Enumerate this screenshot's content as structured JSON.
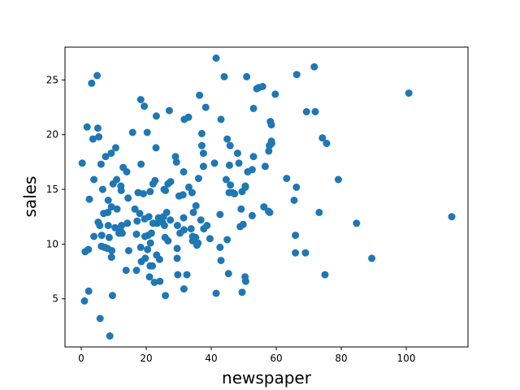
{
  "chart_data": {
    "type": "scatter",
    "title": "",
    "xlabel": "newspaper",
    "ylabel": "sales",
    "xlim": [
      -5,
      119
    ],
    "ylim": [
      0.6,
      28.0
    ],
    "xticks": [
      0,
      20,
      40,
      60,
      80,
      100
    ],
    "yticks": [
      5,
      10,
      15,
      20,
      25
    ],
    "grid": false,
    "legend": "none",
    "marker_color": "#1f77b4",
    "points": [
      [
        0.3,
        17.4
      ],
      [
        1.0,
        4.8
      ],
      [
        1.2,
        9.3
      ],
      [
        1.8,
        20.7
      ],
      [
        2.2,
        9.5
      ],
      [
        2.3,
        5.7
      ],
      [
        2.5,
        14.1
      ],
      [
        3.2,
        24.7
      ],
      [
        3.6,
        19.6
      ],
      [
        3.9,
        15.9
      ],
      [
        3.9,
        10.7
      ],
      [
        4.9,
        25.4
      ],
      [
        5.1,
        20.6
      ],
      [
        5.4,
        19.8
      ],
      [
        5.2,
        12.0
      ],
      [
        5.7,
        11.7
      ],
      [
        5.8,
        3.2
      ],
      [
        6.1,
        17.3
      ],
      [
        6.3,
        10.8
      ],
      [
        6.2,
        9.8
      ],
      [
        6.6,
        15.0
      ],
      [
        6.9,
        12.8
      ],
      [
        7.2,
        9.7
      ],
      [
        7.5,
        18.0
      ],
      [
        8.1,
        9.6
      ],
      [
        8.3,
        14.0
      ],
      [
        8.2,
        12.9
      ],
      [
        8.3,
        11.7
      ],
      [
        8.6,
        10.6
      ],
      [
        8.8,
        1.6
      ],
      [
        9.2,
        18.3
      ],
      [
        9.3,
        13.4
      ],
      [
        9.4,
        9.4
      ],
      [
        9.3,
        8.8
      ],
      [
        9.6,
        5.3
      ],
      [
        9.8,
        15.5
      ],
      [
        10.4,
        11.5
      ],
      [
        10.6,
        18.8
      ],
      [
        10.9,
        15.9
      ],
      [
        11.0,
        13.2
      ],
      [
        11.6,
        11.0
      ],
      [
        12.0,
        11.3
      ],
      [
        12.2,
        15.3
      ],
      [
        12.3,
        14.9
      ],
      [
        12.4,
        11.7
      ],
      [
        12.6,
        11.0
      ],
      [
        12.9,
        17.0
      ],
      [
        13.8,
        7.6
      ],
      [
        14.0,
        16.6
      ],
      [
        14.2,
        11.9
      ],
      [
        14.6,
        9.4
      ],
      [
        14.4,
        14.2
      ],
      [
        15.8,
        20.2
      ],
      [
        16.5,
        13.2
      ],
      [
        17.0,
        10.9
      ],
      [
        17.0,
        7.6
      ],
      [
        17.2,
        12.1
      ],
      [
        17.5,
        14.7
      ],
      [
        18.0,
        12.8
      ],
      [
        18.3,
        23.2
      ],
      [
        18.3,
        9.7
      ],
      [
        18.4,
        17.3
      ],
      [
        18.5,
        8.4
      ],
      [
        19.1,
        14.6
      ],
      [
        19.4,
        22.6
      ],
      [
        19.6,
        10.7
      ],
      [
        19.5,
        12.3
      ],
      [
        19.7,
        8.7
      ],
      [
        20.3,
        20.2
      ],
      [
        20.4,
        9.5
      ],
      [
        20.6,
        10.8
      ],
      [
        20.8,
        12.5
      ],
      [
        21.0,
        7.0
      ],
      [
        21.2,
        14.8
      ],
      [
        21.3,
        10.1
      ],
      [
        21.2,
        8.0
      ],
      [
        21.6,
        11.0
      ],
      [
        21.9,
        8.0
      ],
      [
        22.1,
        15.5
      ],
      [
        22.1,
        11.9
      ],
      [
        22.5,
        6.5
      ],
      [
        22.7,
        15.8
      ],
      [
        23.0,
        18.8
      ],
      [
        23.1,
        21.7
      ],
      [
        23.4,
        11.9
      ],
      [
        23.8,
        12.4
      ],
      [
        23.2,
        9.0
      ],
      [
        24.2,
        6.6
      ],
      [
        24.1,
        8.6
      ],
      [
        25.0,
        12.0
      ],
      [
        25.3,
        12.5
      ],
      [
        25.5,
        15.0
      ],
      [
        25.6,
        11.7
      ],
      [
        25.9,
        14.9
      ],
      [
        25.8,
        10.6
      ],
      [
        25.9,
        5.3
      ],
      [
        26.3,
        12.9
      ],
      [
        26.7,
        15.5
      ],
      [
        26.7,
        10.3
      ],
      [
        27.1,
        22.2
      ],
      [
        27.4,
        12.2
      ],
      [
        27.5,
        15.7
      ],
      [
        29.0,
        18.0
      ],
      [
        29.3,
        17.5
      ],
      [
        29.6,
        11.7
      ],
      [
        29.5,
        9.6
      ],
      [
        29.5,
        8.7
      ],
      [
        29.7,
        7.2
      ],
      [
        30.1,
        14.4
      ],
      [
        30.4,
        11.0
      ],
      [
        31.3,
        14.5
      ],
      [
        31.5,
        16.6
      ],
      [
        31.5,
        12.4
      ],
      [
        31.7,
        21.4
      ],
      [
        31.6,
        11.3
      ],
      [
        31.6,
        5.9
      ],
      [
        32.5,
        7.2
      ],
      [
        33.0,
        21.6
      ],
      [
        33.1,
        15.2
      ],
      [
        33.8,
        11.4
      ],
      [
        34.1,
        14.7
      ],
      [
        34.3,
        10.7
      ],
      [
        34.5,
        12.9
      ],
      [
        34.3,
        10.3
      ],
      [
        35.2,
        10.6
      ],
      [
        35.3,
        13.5
      ],
      [
        35.6,
        9.9
      ],
      [
        35.9,
        10.1
      ],
      [
        36.1,
        16.0
      ],
      [
        36.4,
        23.6
      ],
      [
        36.8,
        12.2
      ],
      [
        37.1,
        20.1
      ],
      [
        37.1,
        19.0
      ],
      [
        37.6,
        18.3
      ],
      [
        37.6,
        17.1
      ],
      [
        37.7,
        11.4
      ],
      [
        38.3,
        22.5
      ],
      [
        38.7,
        11.7
      ],
      [
        39.6,
        10.5
      ],
      [
        41.0,
        17.4
      ],
      [
        41.5,
        27.0
      ],
      [
        41.5,
        5.5
      ],
      [
        42.7,
        12.7
      ],
      [
        42.7,
        9.7
      ],
      [
        43.0,
        21.4
      ],
      [
        43.0,
        8.5
      ],
      [
        44.0,
        25.3
      ],
      [
        44.6,
        15.9
      ],
      [
        44.9,
        19.6
      ],
      [
        44.9,
        10.4
      ],
      [
        45.3,
        7.3
      ],
      [
        45.6,
        17.2
      ],
      [
        45.5,
        14.7
      ],
      [
        45.8,
        19.0
      ],
      [
        45.9,
        15.4
      ],
      [
        46.5,
        14.7
      ],
      [
        47.2,
        14.6
      ],
      [
        48.1,
        18.3
      ],
      [
        48.5,
        17.4
      ],
      [
        48.9,
        11.6
      ],
      [
        49.2,
        13.2
      ],
      [
        49.5,
        14.8
      ],
      [
        49.5,
        5.6
      ],
      [
        49.8,
        11.8
      ],
      [
        50.4,
        7.0
      ],
      [
        50.6,
        6.6
      ],
      [
        50.5,
        15.3
      ],
      [
        50.5,
        15.2
      ],
      [
        50.9,
        25.3
      ],
      [
        51.2,
        16.6
      ],
      [
        52.6,
        16.8
      ],
      [
        52.6,
        12.6
      ],
      [
        53.0,
        22.4
      ],
      [
        53.0,
        18.0
      ],
      [
        54.0,
        24.2
      ],
      [
        54.6,
        24.3
      ],
      [
        55.8,
        24.4
      ],
      [
        56.2,
        13.4
      ],
      [
        56.6,
        17.1
      ],
      [
        57.6,
        13.0
      ],
      [
        57.7,
        18.5
      ],
      [
        58.0,
        12.9
      ],
      [
        57.9,
        19.0
      ],
      [
        58.2,
        21.2
      ],
      [
        58.5,
        19.4
      ],
      [
        58.6,
        19.2
      ],
      [
        58.5,
        20.9
      ],
      [
        59.7,
        23.7
      ],
      [
        63.2,
        16.0
      ],
      [
        65.5,
        14.0
      ],
      [
        65.9,
        10.8
      ],
      [
        65.9,
        9.2
      ],
      [
        66.2,
        15.2
      ],
      [
        66.3,
        25.5
      ],
      [
        69.0,
        9.2
      ],
      [
        69.3,
        22.1
      ],
      [
        71.7,
        26.2
      ],
      [
        72.0,
        22.1
      ],
      [
        73.2,
        12.9
      ],
      [
        74.2,
        19.7
      ],
      [
        75.0,
        7.2
      ],
      [
        75.5,
        19.2
      ],
      [
        79.1,
        15.9
      ],
      [
        84.7,
        11.9
      ],
      [
        89.4,
        8.7
      ],
      [
        100.8,
        23.8
      ],
      [
        114.0,
        12.5
      ]
    ]
  }
}
